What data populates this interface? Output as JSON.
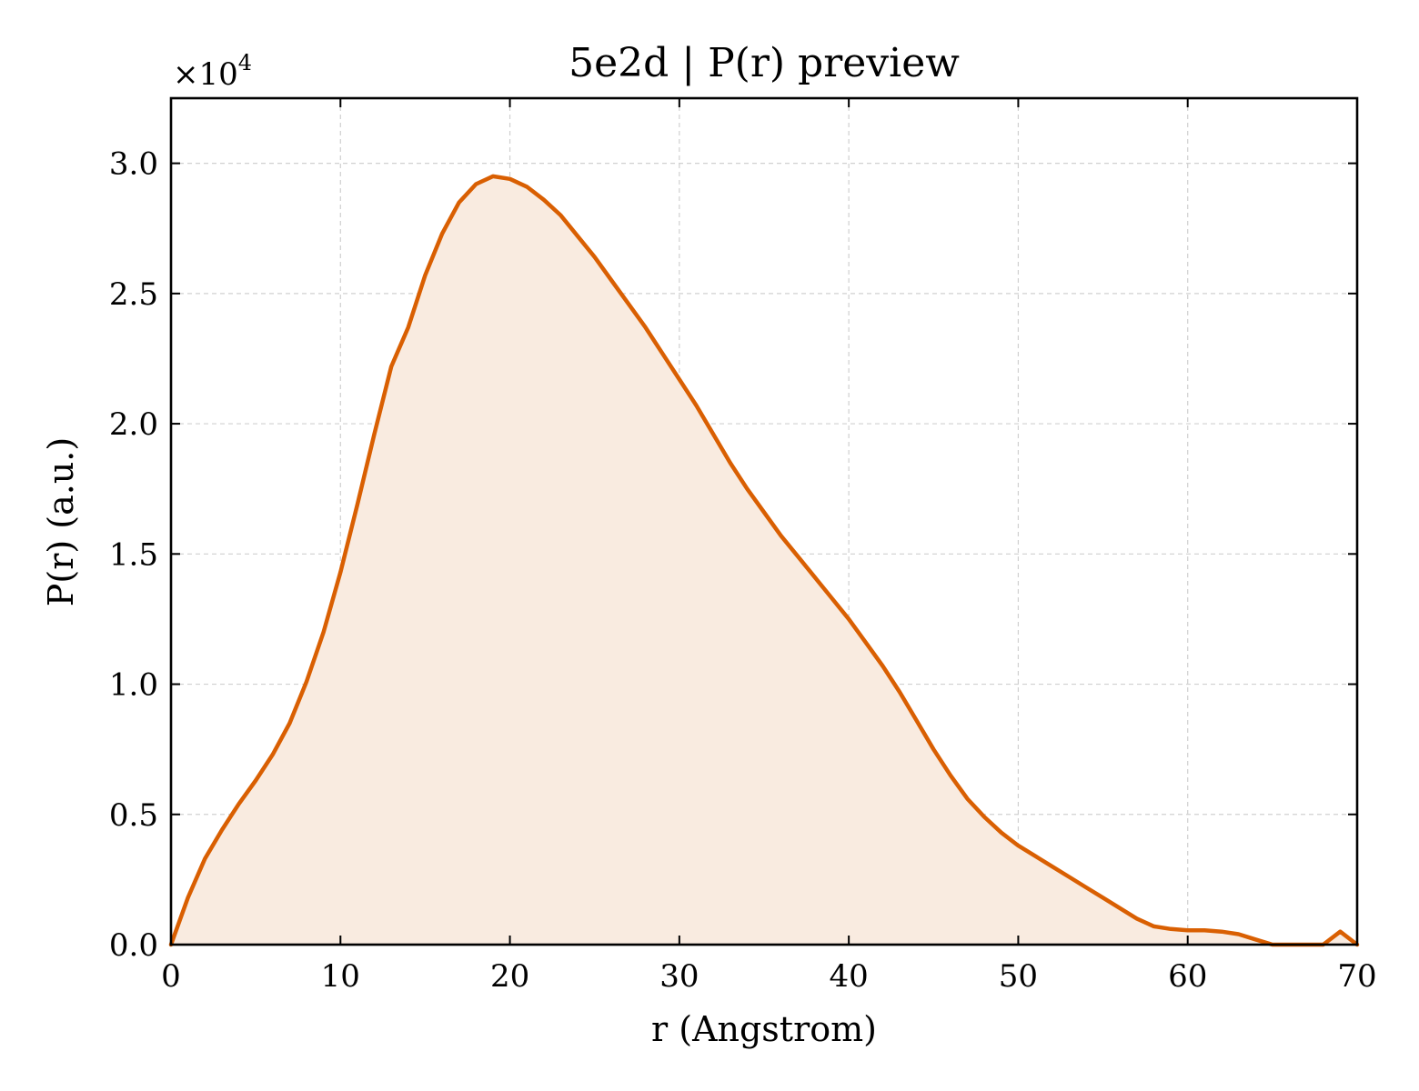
{
  "chart_data": {
    "type": "area",
    "title": "5e2d | P(r) preview",
    "xlabel": "r (Angstrom)",
    "ylabel": "P(r) (a.u.)",
    "y_multiplier_label": "×10",
    "y_multiplier_exponent": "4",
    "xlim": [
      0,
      70
    ],
    "ylim": [
      0,
      3.25
    ],
    "xticks": [
      0,
      10,
      20,
      30,
      40,
      50,
      60,
      70
    ],
    "xtick_labels": [
      "0",
      "10",
      "20",
      "30",
      "40",
      "50",
      "60",
      "70"
    ],
    "yticks": [
      0,
      0.5,
      1.0,
      1.5,
      2.0,
      2.5,
      3.0
    ],
    "ytick_labels": [
      "0.0",
      "0.5",
      "1.0",
      "1.5",
      "2.0",
      "2.5",
      "3.0"
    ],
    "grid": true,
    "line_color": "#d95f02",
    "fill_color": "#f9ebe0",
    "series": [
      {
        "x": [
          0,
          1,
          2,
          3,
          4,
          5,
          6,
          7,
          8,
          9,
          10,
          11,
          12,
          13,
          14,
          15,
          16,
          17,
          18,
          19,
          20,
          21,
          22,
          23,
          24,
          25,
          26,
          27,
          28,
          29,
          30,
          31,
          32,
          33,
          34,
          35,
          36,
          37,
          38,
          39,
          40,
          41,
          42,
          43,
          44,
          45,
          46,
          47,
          48,
          49,
          50,
          51,
          52,
          53,
          54,
          55,
          56,
          57,
          58,
          59,
          60,
          61,
          62,
          63,
          64,
          65,
          66,
          67,
          68,
          69,
          70
        ],
        "y": [
          0.0,
          0.18,
          0.33,
          0.44,
          0.54,
          0.63,
          0.73,
          0.85,
          1.01,
          1.2,
          1.43,
          1.69,
          1.96,
          2.22,
          2.37,
          2.57,
          2.73,
          2.85,
          2.92,
          2.95,
          2.94,
          2.91,
          2.86,
          2.8,
          2.72,
          2.64,
          2.55,
          2.46,
          2.37,
          2.27,
          2.17,
          2.07,
          1.96,
          1.85,
          1.75,
          1.66,
          1.57,
          1.49,
          1.41,
          1.33,
          1.25,
          1.16,
          1.07,
          0.97,
          0.86,
          0.75,
          0.65,
          0.56,
          0.49,
          0.43,
          0.38,
          0.34,
          0.3,
          0.26,
          0.22,
          0.18,
          0.14,
          0.1,
          0.07,
          0.06,
          0.055,
          0.055,
          0.05,
          0.04,
          0.02,
          0.0,
          0.0,
          0.0,
          0.0,
          0.05,
          0.0
        ]
      }
    ]
  }
}
